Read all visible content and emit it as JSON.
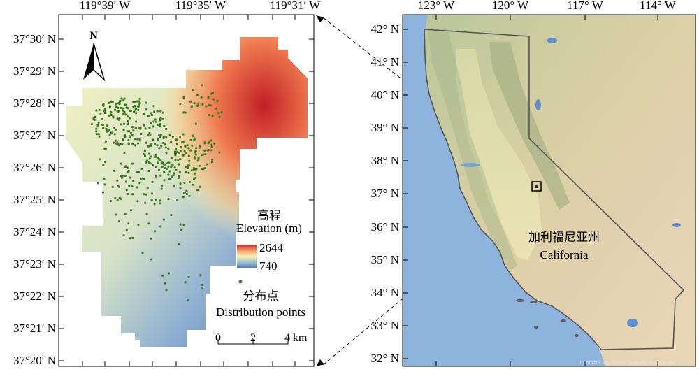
{
  "left_map": {
    "top_axis_labels": [
      "119°39′ W",
      "119°35′ W",
      "119°31′ W"
    ],
    "left_axis_labels": [
      "37°30′ N",
      "37°29′ N",
      "37°28′ N",
      "37°27′ N",
      "37°26′ N",
      "37°25′ N",
      "37°24′ N",
      "37°23′ N",
      "37°22′ N",
      "37°21′ N",
      "37°20′ N"
    ],
    "north_label": "N",
    "legend": {
      "title_cn": "高程",
      "title_en": "Elevation (m)",
      "max_value": "2644",
      "min_value": "740",
      "points_cn": "分布点",
      "points_en": "Distribution points",
      "ramp_colors": [
        "#c8232a",
        "#f3a064",
        "#f6f1b4",
        "#9bbfd4",
        "#4a72b0"
      ],
      "point_color": "#3a7a1f"
    },
    "scale_bar": {
      "ticks": [
        "0",
        "2",
        "4 km"
      ]
    }
  },
  "right_map": {
    "top_axis_labels": [
      "123° W",
      "120° W",
      "117° W",
      "114° W"
    ],
    "left_axis_labels": [
      "42° N",
      "41° N",
      "40° N",
      "39° N",
      "38° N",
      "37° N",
      "36° N",
      "35° N",
      "34° N",
      "33° N",
      "32° N"
    ],
    "state_cn": "加利福尼亚州",
    "state_en": "California",
    "attribution": "Copyright:© 2013 National Geographic Society, i-cubed"
  }
}
